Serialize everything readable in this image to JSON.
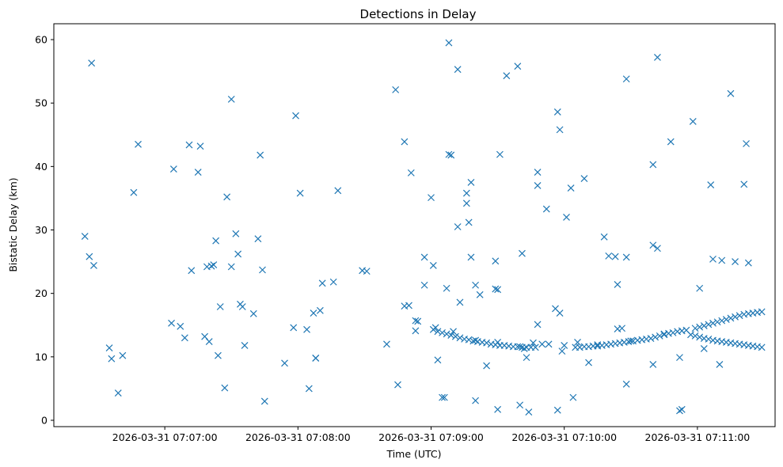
{
  "chart_data": {
    "type": "scatter",
    "title": "Detections in Delay",
    "xlabel": "Time (UTC)",
    "ylabel": "Bistatic Delay (km)",
    "marker": "x",
    "color": "#1f77b4",
    "grid": false,
    "x_ticks": [
      {
        "label": "2026-03-31 07:07:00",
        "value": 25620
      },
      {
        "label": "2026-03-31 07:08:00",
        "value": 25680
      },
      {
        "label": "2026-03-31 07:09:00",
        "value": 25740
      },
      {
        "label": "2026-03-31 07:10:00",
        "value": 25800
      },
      {
        "label": "2026-03-31 07:11:00",
        "value": 25860
      }
    ],
    "y_ticks": [
      0,
      10,
      20,
      30,
      40,
      50,
      60
    ],
    "xlim": [
      25570,
      25895
    ],
    "ylim": [
      -1,
      62.5
    ],
    "points": [
      [
        25584,
        29.0
      ],
      [
        25586,
        25.8
      ],
      [
        25587,
        56.3
      ],
      [
        25588,
        24.4
      ],
      [
        25595,
        11.4
      ],
      [
        25596,
        9.7
      ],
      [
        25599,
        4.3
      ],
      [
        25601,
        10.2
      ],
      [
        25606,
        35.9
      ],
      [
        25608,
        43.5
      ],
      [
        25623,
        15.3
      ],
      [
        25624,
        39.6
      ],
      [
        25627,
        14.8
      ],
      [
        25629,
        13.0
      ],
      [
        25631,
        43.4
      ],
      [
        25632,
        23.6
      ],
      [
        25635,
        39.1
      ],
      [
        25636,
        43.2
      ],
      [
        25638,
        13.2
      ],
      [
        25639,
        24.2
      ],
      [
        25640,
        12.4
      ],
      [
        25641,
        24.3
      ],
      [
        25642,
        24.5
      ],
      [
        25643,
        28.3
      ],
      [
        25644,
        10.2
      ],
      [
        25645,
        17.9
      ],
      [
        25647,
        5.1
      ],
      [
        25648,
        35.2
      ],
      [
        25650,
        24.2
      ],
      [
        25650,
        50.6
      ],
      [
        25652,
        29.4
      ],
      [
        25653,
        26.2
      ],
      [
        25654,
        18.3
      ],
      [
        25655,
        17.9
      ],
      [
        25656,
        11.8
      ],
      [
        25660,
        16.8
      ],
      [
        25662,
        28.6
      ],
      [
        25663,
        41.8
      ],
      [
        25664,
        23.7
      ],
      [
        25665,
        3.0
      ],
      [
        25674,
        9.0
      ],
      [
        25678,
        14.6
      ],
      [
        25679,
        48.0
      ],
      [
        25681,
        35.8
      ],
      [
        25684,
        14.3
      ],
      [
        25685,
        5.0
      ],
      [
        25687,
        16.9
      ],
      [
        25688,
        9.8
      ],
      [
        25688,
        9.8
      ],
      [
        25690,
        17.3
      ],
      [
        25691,
        21.6
      ],
      [
        25696,
        21.8
      ],
      [
        25698,
        36.2
      ],
      [
        25709,
        23.6
      ],
      [
        25711,
        23.5
      ],
      [
        25720,
        12.0
      ],
      [
        25724,
        52.1
      ],
      [
        25725,
        5.6
      ],
      [
        25728,
        18.0
      ],
      [
        25728,
        43.9
      ],
      [
        25730,
        18.1
      ],
      [
        25731,
        39.0
      ],
      [
        25733,
        15.7
      ],
      [
        25733,
        14.1
      ],
      [
        25734,
        15.6
      ],
      [
        25737,
        21.3
      ],
      [
        25737,
        25.7
      ],
      [
        25740,
        35.1
      ],
      [
        25741,
        24.4
      ],
      [
        25742,
        14.6
      ],
      [
        25743,
        9.5
      ],
      [
        25745,
        3.6
      ],
      [
        25746,
        3.6
      ],
      [
        25747,
        20.8
      ],
      [
        25748,
        41.9
      ],
      [
        25749,
        41.8
      ],
      [
        25748,
        59.5
      ],
      [
        25752,
        30.5
      ],
      [
        25752,
        55.3
      ],
      [
        25753,
        18.6
      ],
      [
        25756,
        35.8
      ],
      [
        25756,
        34.2
      ],
      [
        25757,
        31.2
      ],
      [
        25758,
        37.5
      ],
      [
        25758,
        25.7
      ],
      [
        25760,
        21.3
      ],
      [
        25760,
        3.1
      ],
      [
        25762,
        19.8
      ],
      [
        25765,
        8.6
      ],
      [
        25769,
        20.7
      ],
      [
        25769,
        25.1
      ],
      [
        25770,
        20.6
      ],
      [
        25770,
        1.7
      ],
      [
        25771,
        41.9
      ],
      [
        25774,
        54.3
      ],
      [
        25779,
        55.8
      ],
      [
        25780,
        2.4
      ],
      [
        25781,
        26.3
      ],
      [
        25782,
        11.3
      ],
      [
        25783,
        9.9
      ],
      [
        25784,
        1.3
      ],
      [
        25786,
        12.2
      ],
      [
        25788,
        15.1
      ],
      [
        25788,
        39.1
      ],
      [
        25788,
        37.0
      ],
      [
        25792,
        33.3
      ],
      [
        25793,
        12.0
      ],
      [
        25796,
        17.6
      ],
      [
        25797,
        48.6
      ],
      [
        25797,
        1.6
      ],
      [
        25798,
        45.8
      ],
      [
        25798,
        16.9
      ],
      [
        25799,
        10.9
      ],
      [
        25801,
        32.0
      ],
      [
        25803,
        36.6
      ],
      [
        25804,
        3.6
      ],
      [
        25806,
        12.3
      ],
      [
        25809,
        38.1
      ],
      [
        25811,
        9.1
      ],
      [
        25818,
        28.9
      ],
      [
        25820,
        25.9
      ],
      [
        25823,
        25.8
      ],
      [
        25824,
        21.4
      ],
      [
        25824,
        14.4
      ],
      [
        25826,
        14.5
      ],
      [
        25828,
        25.7
      ],
      [
        25828,
        5.7
      ],
      [
        25828,
        53.8
      ],
      [
        25840,
        8.8
      ],
      [
        25840,
        40.3
      ],
      [
        25840,
        27.6
      ],
      [
        25842,
        57.2
      ],
      [
        25842,
        27.1
      ],
      [
        25848,
        43.9
      ],
      [
        25852,
        9.9
      ],
      [
        25852,
        1.5
      ],
      [
        25853,
        1.7
      ],
      [
        25858,
        47.1
      ],
      [
        25861,
        20.8
      ],
      [
        25863,
        11.3
      ],
      [
        25866,
        37.1
      ],
      [
        25867,
        25.4
      ],
      [
        25870,
        8.8
      ],
      [
        25871,
        25.2
      ],
      [
        25875,
        51.5
      ],
      [
        25877,
        25.0
      ],
      [
        25881,
        37.2
      ],
      [
        25882,
        43.6
      ],
      [
        25883,
        24.8
      ],
      [
        25741,
        14.3
      ],
      [
        25743,
        14.0
      ],
      [
        25745,
        13.8
      ],
      [
        25747,
        13.6
      ],
      [
        25749,
        13.4
      ],
      [
        25751,
        13.2
      ],
      [
        25753,
        13.0
      ],
      [
        25755,
        12.8
      ],
      [
        25757,
        12.7
      ],
      [
        25759,
        12.5
      ],
      [
        25761,
        12.4
      ],
      [
        25763,
        12.3
      ],
      [
        25765,
        12.2
      ],
      [
        25767,
        12.0
      ],
      [
        25769,
        11.9
      ],
      [
        25771,
        11.8
      ],
      [
        25773,
        11.8
      ],
      [
        25775,
        11.7
      ],
      [
        25777,
        11.6
      ],
      [
        25779,
        11.6
      ],
      [
        25781,
        11.5
      ],
      [
        25783,
        11.5
      ],
      [
        25785,
        11.5
      ],
      [
        25787,
        11.5
      ],
      [
        25805,
        11.5
      ],
      [
        25807,
        11.5
      ],
      [
        25809,
        11.6
      ],
      [
        25811,
        11.6
      ],
      [
        25813,
        11.7
      ],
      [
        25815,
        11.7
      ],
      [
        25817,
        11.8
      ],
      [
        25819,
        11.9
      ],
      [
        25821,
        12.0
      ],
      [
        25823,
        12.1
      ],
      [
        25825,
        12.2
      ],
      [
        25827,
        12.3
      ],
      [
        25829,
        12.4
      ],
      [
        25831,
        12.5
      ],
      [
        25833,
        12.6
      ],
      [
        25835,
        12.7
      ],
      [
        25837,
        12.8
      ],
      [
        25839,
        12.9
      ],
      [
        25841,
        13.1
      ],
      [
        25843,
        13.3
      ],
      [
        25845,
        13.5
      ],
      [
        25847,
        13.7
      ],
      [
        25849,
        13.8
      ],
      [
        25851,
        14.0
      ],
      [
        25853,
        14.1
      ],
      [
        25855,
        14.2
      ],
      [
        25857,
        13.5
      ],
      [
        25859,
        13.3
      ],
      [
        25861,
        13.1
      ],
      [
        25863,
        12.9
      ],
      [
        25865,
        12.8
      ],
      [
        25867,
        12.6
      ],
      [
        25869,
        12.5
      ],
      [
        25871,
        12.4
      ],
      [
        25873,
        12.3
      ],
      [
        25875,
        12.2
      ],
      [
        25877,
        12.1
      ],
      [
        25879,
        12.0
      ],
      [
        25881,
        11.9
      ],
      [
        25883,
        11.8
      ],
      [
        25885,
        11.7
      ],
      [
        25887,
        11.6
      ],
      [
        25889,
        11.5
      ],
      [
        25859,
        14.5
      ],
      [
        25861,
        14.7
      ],
      [
        25863,
        14.9
      ],
      [
        25865,
        15.1
      ],
      [
        25867,
        15.3
      ],
      [
        25869,
        15.5
      ],
      [
        25871,
        15.7
      ],
      [
        25873,
        15.9
      ],
      [
        25875,
        16.1
      ],
      [
        25877,
        16.3
      ],
      [
        25879,
        16.5
      ],
      [
        25881,
        16.7
      ],
      [
        25883,
        16.8
      ],
      [
        25885,
        16.9
      ],
      [
        25887,
        17.0
      ],
      [
        25889,
        17.1
      ],
      [
        25750,
        14.0
      ],
      [
        25760,
        12.6
      ],
      [
        25770,
        12.3
      ],
      [
        25780,
        11.6
      ],
      [
        25790,
        12.0
      ],
      [
        25800,
        11.8
      ],
      [
        25815,
        11.9
      ],
      [
        25830,
        12.5
      ],
      [
        25845,
        13.6
      ]
    ]
  }
}
